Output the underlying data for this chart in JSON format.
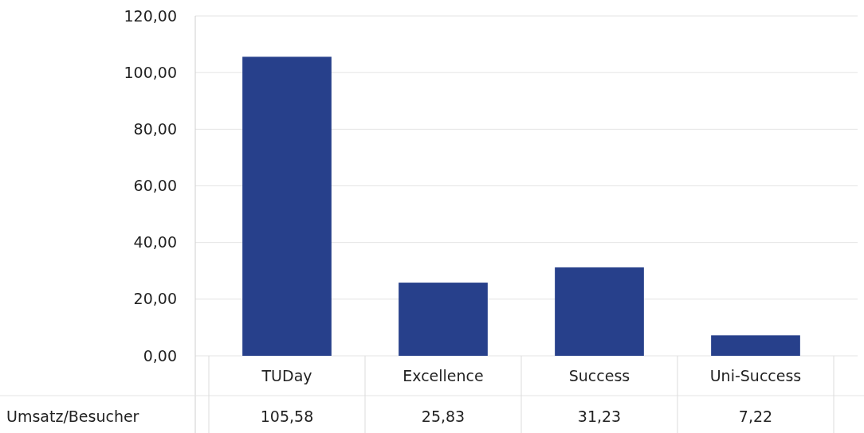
{
  "chart_data": {
    "type": "bar",
    "categories": [
      "TUDay",
      "Excellence",
      "Success",
      "Uni-Success"
    ],
    "series": [
      {
        "name": "Umsatz/Besucher",
        "color": "#27408b",
        "values": [
          105.58,
          25.83,
          31.23,
          7.22
        ],
        "value_labels": [
          "105,58",
          "25,83",
          "31,23",
          "7,22"
        ]
      }
    ],
    "ylim": [
      0,
      120
    ],
    "yticks": [
      {
        "value": 0,
        "label": "0,00"
      },
      {
        "value": 20,
        "label": "20,00"
      },
      {
        "value": 40,
        "label": "40,00"
      },
      {
        "value": 60,
        "label": "60,00"
      },
      {
        "value": 80,
        "label": "80,00"
      },
      {
        "value": 100,
        "label": "100,00"
      },
      {
        "value": 120,
        "label": "120,00"
      }
    ],
    "grid": "y"
  }
}
